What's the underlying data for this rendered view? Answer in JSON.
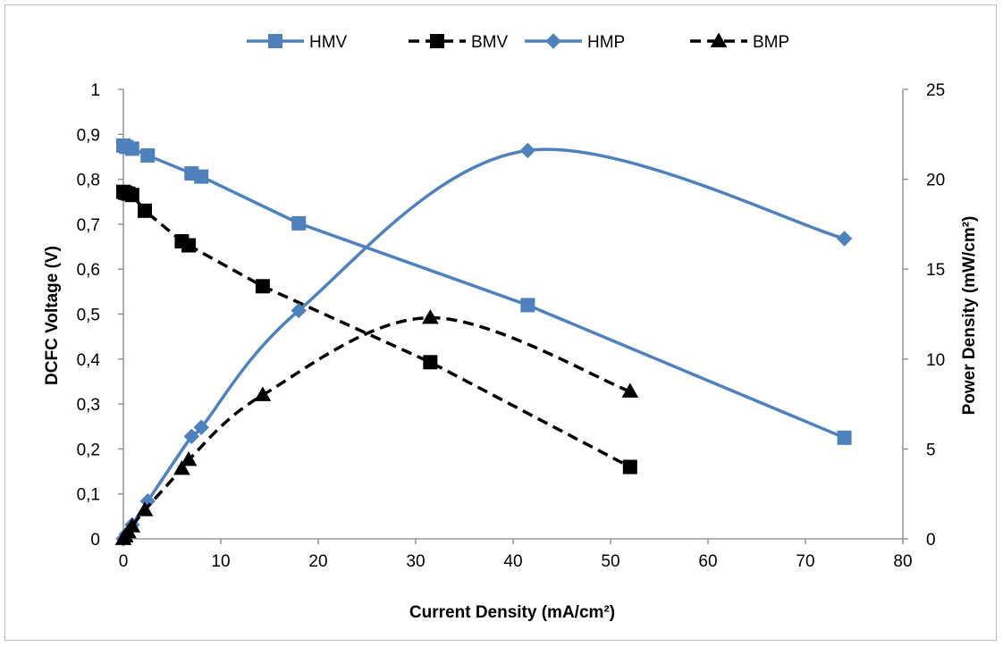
{
  "chart_data": {
    "type": "line",
    "x_axis": {
      "label": "Current Density (mA/cm²)",
      "range": [
        0,
        80
      ],
      "ticks": [
        "0",
        "10",
        "20",
        "30",
        "40",
        "50",
        "60",
        "70",
        "80"
      ]
    },
    "y_axis_left": {
      "label": "DCFC Voltage (V)",
      "range": [
        0,
        1
      ],
      "ticks": [
        "0",
        "0,1",
        "0,2",
        "0,3",
        "0,4",
        "0,5",
        "0,6",
        "0,7",
        "0,8",
        "0,9",
        "1"
      ]
    },
    "y_axis_right": {
      "label": "Power Density (mW/cm²)",
      "range": [
        0,
        25
      ],
      "ticks": [
        "0",
        "5",
        "10",
        "15",
        "20",
        "25"
      ]
    },
    "legend_position": "top",
    "grid": false,
    "series": [
      {
        "name": "HMV",
        "axis": "left",
        "color": "#4f81bd",
        "dash": "solid",
        "marker": "square",
        "smooth": false,
        "x": [
          0,
          0.3,
          0.9,
          2.5,
          7,
          8,
          18,
          41.5,
          74
        ],
        "y": [
          0.875,
          0.872,
          0.868,
          0.853,
          0.813,
          0.806,
          0.702,
          0.52,
          0.225
        ]
      },
      {
        "name": "BMV",
        "axis": "left",
        "color": "#000000",
        "dash": "dashed",
        "marker": "square",
        "smooth": false,
        "x": [
          0,
          0.2,
          0.5,
          0.9,
          2.2,
          6,
          6.7,
          14.3,
          31.5,
          52
        ],
        "y": [
          0.772,
          0.77,
          0.768,
          0.765,
          0.73,
          0.662,
          0.653,
          0.562,
          0.393,
          0.16
        ]
      },
      {
        "name": "HMP",
        "axis": "right",
        "color": "#4f81bd",
        "dash": "solid",
        "marker": "diamond",
        "smooth": true,
        "x": [
          0,
          0.3,
          0.9,
          2.5,
          7,
          8,
          18,
          41.5,
          74
        ],
        "y": [
          0,
          0.26,
          0.78,
          2.1,
          5.7,
          6.2,
          12.7,
          21.6,
          16.7
        ]
      },
      {
        "name": "BMP",
        "axis": "right",
        "color": "#000000",
        "dash": "dashed",
        "marker": "triangle",
        "smooth": true,
        "x": [
          0,
          0.2,
          0.5,
          0.9,
          2.2,
          6,
          6.7,
          14.3,
          31.5,
          52
        ],
        "y": [
          0,
          0.15,
          0.38,
          0.7,
          1.6,
          3.9,
          4.4,
          8.0,
          12.3,
          8.2
        ]
      }
    ]
  }
}
